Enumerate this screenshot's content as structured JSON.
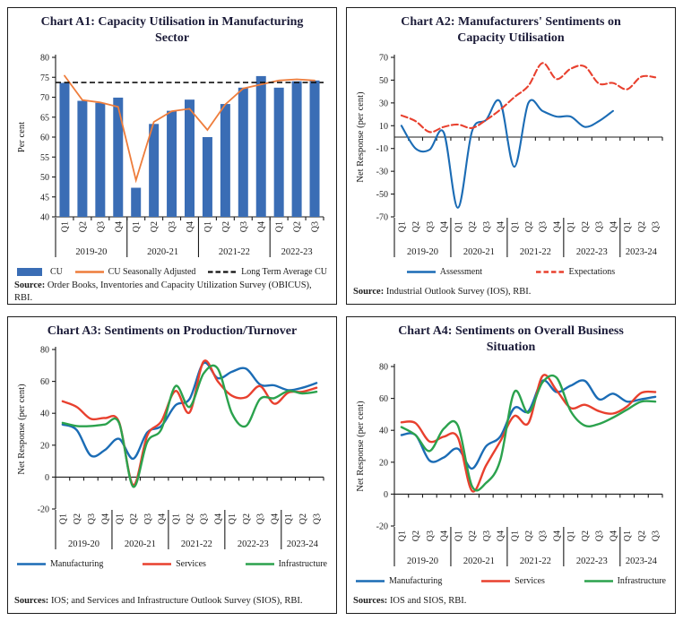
{
  "figure": {
    "background": "#ffffff",
    "border_color": "#1c1c1c",
    "title_color": "#1b1b38",
    "quarter_labels_note": "x tick labels rotated 90 degrees"
  },
  "chart_data": [
    {
      "id": "A1",
      "type": "bar",
      "title": "Chart A1: Capacity Utilisation in Manufacturing Sector",
      "ylabel": "Per cent",
      "ylim": [
        40,
        80
      ],
      "yticks": [
        40,
        45,
        50,
        55,
        60,
        65,
        70,
        75,
        80
      ],
      "baseline": 40,
      "grid": false,
      "legend_position": "bottom",
      "categories": [
        "Q1",
        "Q2",
        "Q3",
        "Q4",
        "Q1",
        "Q2",
        "Q3",
        "Q4",
        "Q1",
        "Q2",
        "Q3",
        "Q4",
        "Q1",
        "Q2",
        "Q3"
      ],
      "year_groups": [
        {
          "label": "2019-20",
          "span": 4
        },
        {
          "label": "2020-21",
          "span": 4
        },
        {
          "label": "2021-22",
          "span": 4
        },
        {
          "label": "2022-23",
          "span": 3
        }
      ],
      "series": [
        {
          "name": "CU",
          "type": "bar",
          "color": "#3a6db5",
          "values": [
            73.6,
            69.1,
            68.6,
            69.9,
            47.3,
            63.3,
            66.6,
            69.4,
            60.0,
            68.3,
            72.4,
            75.3,
            72.4,
            74.0,
            74.2
          ]
        },
        {
          "name": "CU Seasonally Adjusted",
          "type": "line",
          "smooth": false,
          "color": "#ee7d3c",
          "values": [
            75.4,
            69.3,
            68.7,
            67.6,
            49.2,
            63.8,
            66.5,
            67.1,
            61.8,
            68.2,
            72.2,
            73.2,
            74.2,
            74.5,
            74.2
          ]
        },
        {
          "name": "Long Term Average CU",
          "type": "refline",
          "dash": true,
          "color": "#111111",
          "value": 73.7
        }
      ],
      "source_label": "Source:",
      "source_text": " Order Books, Inventories and Capacity Utilization Survey (OBICUS), RBI."
    },
    {
      "id": "A2",
      "type": "line",
      "title": "Chart A2: Manufacturers' Sentiments on Capacity Utilisation",
      "ylabel": "Net Response (per cent)",
      "ylim": [
        -70,
        70
      ],
      "yticks": [
        -70,
        -50,
        -30,
        -10,
        10,
        30,
        50,
        70
      ],
      "baseline": 0,
      "grid": false,
      "legend_position": "bottom",
      "categories": [
        "Q1",
        "Q2",
        "Q3",
        "Q4",
        "Q1",
        "Q2",
        "Q3",
        "Q4",
        "Q1",
        "Q2",
        "Q3",
        "Q4",
        "Q1",
        "Q2",
        "Q3",
        "Q4",
        "Q1",
        "Q2",
        "Q3"
      ],
      "year_groups": [
        {
          "label": "2019-20",
          "span": 4
        },
        {
          "label": "2020-21",
          "span": 4
        },
        {
          "label": "2021-22",
          "span": 4
        },
        {
          "label": "2022-23",
          "span": 4
        },
        {
          "label": "2023-24",
          "span": 3
        }
      ],
      "series": [
        {
          "name": "Assessment",
          "type": "line",
          "smooth": true,
          "color": "#1b6cb5",
          "values": [
            10,
            -10,
            -11,
            4,
            -62,
            5,
            15,
            31,
            -26,
            30,
            23,
            18,
            18,
            9,
            14,
            23,
            null,
            null,
            null
          ]
        },
        {
          "name": "Expectations",
          "type": "line",
          "smooth": true,
          "dash": true,
          "color": "#e8402e",
          "values": [
            19,
            14,
            4.5,
            9,
            11,
            8,
            15,
            24,
            35,
            45,
            65,
            51,
            60,
            62,
            47,
            47.5,
            42,
            53,
            52.5
          ]
        }
      ],
      "source_label": "Source:",
      "source_text": " Industrial Outlook Survey (IOS), RBI."
    },
    {
      "id": "A3",
      "type": "line",
      "title": "Chart A3: Sentiments on Production/Turnover",
      "ylabel": "Net Response (per cent)",
      "ylim": [
        -20,
        80
      ],
      "yticks": [
        -20,
        0,
        20,
        40,
        60,
        80
      ],
      "baseline": 0,
      "grid": false,
      "legend_position": "bottom",
      "categories": [
        "Q1",
        "Q2",
        "Q3",
        "Q4",
        "Q1",
        "Q2",
        "Q3",
        "Q4",
        "Q1",
        "Q2",
        "Q3",
        "Q4",
        "Q1",
        "Q2",
        "Q3",
        "Q4",
        "Q1",
        "Q2",
        "Q3"
      ],
      "year_groups": [
        {
          "label": "2019-20",
          "span": 4
        },
        {
          "label": "2020-21",
          "span": 4
        },
        {
          "label": "2021-22",
          "span": 4
        },
        {
          "label": "2022-23",
          "span": 4
        },
        {
          "label": "2023-24",
          "span": 3
        }
      ],
      "series": [
        {
          "name": "Manufacturing",
          "type": "line",
          "smooth": true,
          "color": "#1b6cb5",
          "values": [
            33,
            29.5,
            13.5,
            17,
            24,
            11.5,
            28,
            32,
            45,
            49,
            71.5,
            62,
            66,
            68,
            58,
            57.5,
            54.5,
            56,
            59
          ]
        },
        {
          "name": "Services",
          "type": "line",
          "smooth": true,
          "color": "#e8402e",
          "values": [
            47.5,
            44,
            36.5,
            37,
            34.5,
            -5,
            26,
            35,
            54,
            40.5,
            72.5,
            60,
            51,
            50,
            57,
            46,
            53,
            53.5,
            56
          ]
        },
        {
          "name": "Infrastructure",
          "type": "line",
          "smooth": true,
          "color": "#2ba24d",
          "values": [
            34,
            32,
            32,
            33,
            34,
            -6,
            22,
            30,
            57,
            44,
            65,
            68,
            40,
            32,
            49,
            49.5,
            54,
            52.5,
            53.5
          ]
        }
      ],
      "source_label": "Sources:",
      "source_text": " IOS; and Services and Infrastructure Outlook Survey (SIOS), RBI."
    },
    {
      "id": "A4",
      "type": "line",
      "title": "Chart A4: Sentiments on Overall Business Situation",
      "ylabel": "Net Response (per cent)",
      "ylim": [
        -20,
        80
      ],
      "yticks": [
        -20,
        0,
        20,
        40,
        60,
        80
      ],
      "baseline": 0,
      "grid": false,
      "legend_position": "bottom",
      "categories": [
        "Q1",
        "Q2",
        "Q3",
        "Q4",
        "Q1",
        "Q2",
        "Q3",
        "Q4",
        "Q1",
        "Q2",
        "Q3",
        "Q4",
        "Q1",
        "Q2",
        "Q3",
        "Q4",
        "Q1",
        "Q2",
        "Q3"
      ],
      "year_groups": [
        {
          "label": "2019-20",
          "span": 4
        },
        {
          "label": "2020-21",
          "span": 4
        },
        {
          "label": "2021-22",
          "span": 4
        },
        {
          "label": "2022-23",
          "span": 4
        },
        {
          "label": "2023-24",
          "span": 3
        }
      ],
      "series": [
        {
          "name": "Manufacturing",
          "type": "line",
          "smooth": true,
          "color": "#1b6cb5",
          "values": [
            37,
            37,
            21,
            23,
            28.5,
            16,
            30,
            36,
            54,
            52,
            71,
            64,
            68,
            71,
            59.5,
            63,
            58,
            59.5,
            61
          ]
        },
        {
          "name": "Services",
          "type": "line",
          "smooth": true,
          "color": "#e8402e",
          "values": [
            45,
            44.5,
            33,
            36,
            35.5,
            2,
            18,
            33,
            49,
            44.5,
            74,
            65,
            54,
            56,
            52,
            50.5,
            55,
            63.5,
            64
          ]
        },
        {
          "name": "Infrastructure",
          "type": "line",
          "smooth": true,
          "color": "#2ba24d",
          "values": [
            42,
            37,
            27,
            41,
            43,
            5,
            7,
            21,
            64,
            51,
            70,
            73,
            52,
            43,
            44,
            48,
            53,
            58,
            58
          ]
        }
      ],
      "source_label": "Sources:",
      "source_text": " IOS and SIOS, RBI."
    }
  ]
}
